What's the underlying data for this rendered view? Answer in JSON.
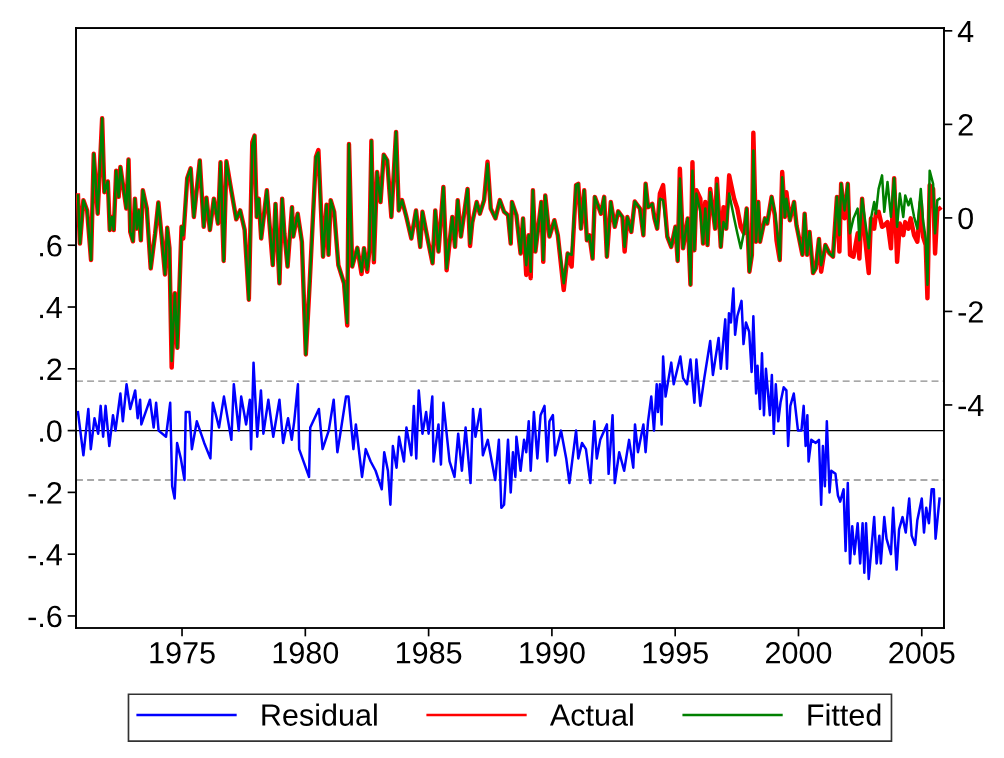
{
  "chart_data": {
    "type": "line",
    "xlim": [
      1970.7,
      2005.9
    ],
    "xticks": [
      1975,
      1980,
      1985,
      1990,
      1995,
      2000,
      2005
    ],
    "ylim": [
      -0.639,
      1.303
    ],
    "yticks": [
      {
        "value": -0.6,
        "label": "-.6"
      },
      {
        "value": -0.4,
        "label": "-.4"
      },
      {
        "value": -0.2,
        "label": "-.2"
      },
      {
        "value": 0,
        "label": ".0"
      },
      {
        "value": 0.2,
        "label": ".2"
      },
      {
        "value": 0.4,
        "label": ".4"
      },
      {
        "value": 0.6,
        "label": ".6"
      }
    ],
    "y2lim": [
      -8.77,
      4.06
    ],
    "y2ticks": [
      -4,
      -2,
      0,
      2,
      4
    ],
    "grid": false,
    "legend": "bottom",
    "line_style": "solid",
    "marker": "none",
    "ref_lines": [
      {
        "axis": "y",
        "value": 0,
        "color": "#000000",
        "line_style": "solid"
      },
      {
        "axis": "y",
        "value": 0.16,
        "color": "#8c8c8c",
        "line_style": "dashed"
      },
      {
        "axis": "y",
        "value": -0.16,
        "color": "#8c8c8c",
        "line_style": "dashed"
      }
    ],
    "series": [
      {
        "name": "Residual",
        "color": "#0000ff",
        "x": [
          1970.78,
          1971.0,
          1971.2,
          1971.3,
          1971.45,
          1971.6,
          1971.7,
          1971.8,
          1971.9,
          1972.05,
          1972.2,
          1972.3,
          1972.5,
          1972.6,
          1972.75,
          1972.9,
          1973.1,
          1973.2,
          1973.3,
          1973.35,
          1973.7,
          1973.85,
          1973.95,
          1974.05,
          1974.35,
          1974.52,
          1974.6,
          1974.7,
          1974.8,
          1974.95,
          1975.1,
          1975.15,
          1975.3,
          1975.4,
          1975.6,
          1975.9,
          1976.15,
          1976.25,
          1976.5,
          1976.7,
          1977.0,
          1977.1,
          1977.3,
          1977.4,
          1977.6,
          1977.75,
          1977.8,
          1977.9,
          1978.05,
          1978.2,
          1978.3,
          1978.5,
          1978.7,
          1978.95,
          1979.1,
          1979.3,
          1979.45,
          1979.55,
          1979.7,
          1979.75,
          1980.15,
          1980.2,
          1980.55,
          1980.7,
          1980.95,
          1981.15,
          1981.3,
          1981.4,
          1981.65,
          1981.75,
          1981.95,
          1982.05,
          1982.3,
          1982.45,
          1982.65,
          1982.85,
          1983.1,
          1983.2,
          1983.35,
          1983.45,
          1983.55,
          1983.7,
          1983.8,
          1984.0,
          1984.1,
          1984.3,
          1984.4,
          1984.5,
          1984.6,
          1984.75,
          1984.9,
          1985.0,
          1985.15,
          1985.2,
          1985.4,
          1985.5,
          1985.6,
          1985.85,
          1986.05,
          1986.2,
          1986.35,
          1986.5,
          1986.7,
          1986.8,
          1986.9,
          1987.1,
          1987.2,
          1987.4,
          1987.7,
          1987.85,
          1987.95,
          1988.06,
          1988.22,
          1988.33,
          1988.42,
          1988.52,
          1988.56,
          1988.73,
          1988.87,
          1988.96,
          1989.06,
          1989.14,
          1989.27,
          1989.41,
          1989.54,
          1989.7,
          1989.81,
          1989.9,
          1990.04,
          1990.13,
          1990.37,
          1990.58,
          1990.71,
          1990.98,
          1991.07,
          1991.22,
          1991.38,
          1991.56,
          1991.72,
          1991.82,
          1991.96,
          1992.23,
          1992.3,
          1992.46,
          1992.55,
          1992.73,
          1992.93,
          1993.13,
          1993.3,
          1993.37,
          1993.49,
          1993.71,
          1993.8,
          1993.9,
          1994.03,
          1994.14,
          1994.25,
          1994.3,
          1994.38,
          1994.45,
          1994.51,
          1994.61,
          1994.84,
          1994.94,
          1995.21,
          1995.32,
          1995.48,
          1995.62,
          1995.78,
          1995.86,
          1996.02,
          1996.18,
          1996.42,
          1996.53,
          1996.76,
          1996.85,
          1997.03,
          1997.1,
          1997.18,
          1997.26,
          1997.36,
          1997.43,
          1997.52,
          1997.69,
          1997.77,
          1997.87,
          1998.0,
          1998.1,
          1998.17,
          1998.28,
          1998.34,
          1998.44,
          1998.52,
          1998.6,
          1998.68,
          1998.84,
          1998.92,
          1999.0,
          1999.08,
          1999.18,
          1999.27,
          1999.4,
          1999.51,
          1999.58,
          1999.67,
          1999.81,
          1999.98,
          2000.12,
          2000.21,
          2000.29,
          2000.36,
          2000.41,
          2000.52,
          2000.7,
          2000.83,
          2000.92,
          2000.99,
          2001.07,
          2001.15,
          2001.26,
          2001.33,
          2001.5,
          2001.6,
          2001.69,
          2001.83,
          2001.91,
          2002.0,
          2002.09,
          2002.18,
          2002.27,
          2002.4,
          2002.5,
          2002.6,
          2002.67,
          2002.74,
          2002.85,
          2003.07,
          2003.17,
          2003.28,
          2003.34,
          2003.48,
          2003.57,
          2003.75,
          2003.84,
          2003.98,
          2004.08,
          2004.22,
          2004.35,
          2004.49,
          2004.59,
          2004.73,
          2004.82,
          2005.0,
          2005.09,
          2005.18,
          2005.29,
          2005.4,
          2005.49,
          2005.56,
          2005.72
        ],
        "values": [
          0.06,
          -0.08,
          0.07,
          -0.06,
          0.04,
          -0.01,
          0.08,
          -0.02,
          0.08,
          -0.05,
          0.05,
          0.0,
          0.12,
          0.03,
          0.15,
          0.07,
          0.13,
          0.04,
          0.1,
          0.02,
          0.1,
          0.01,
          0.09,
          0.0,
          -0.02,
          0.09,
          -0.18,
          -0.22,
          -0.04,
          -0.09,
          -0.16,
          0.06,
          0.06,
          -0.06,
          0.03,
          -0.04,
          -0.09,
          0.09,
          0.01,
          0.11,
          -0.03,
          0.15,
          0.0,
          0.11,
          0.02,
          0.1,
          -0.06,
          0.22,
          -0.02,
          0.13,
          -0.01,
          0.1,
          -0.02,
          0.1,
          -0.04,
          0.04,
          -0.03,
          0.03,
          0.15,
          -0.06,
          -0.15,
          0.01,
          0.07,
          -0.06,
          0.0,
          0.1,
          -0.07,
          -0.02,
          0.11,
          0.11,
          -0.06,
          0.02,
          -0.15,
          -0.06,
          -0.1,
          -0.13,
          -0.19,
          -0.07,
          -0.13,
          -0.24,
          -0.05,
          -0.12,
          -0.02,
          -0.1,
          0.01,
          -0.08,
          0.08,
          -0.09,
          0.13,
          -0.01,
          0.06,
          -0.01,
          0.11,
          -0.1,
          0.02,
          -0.11,
          0.09,
          -0.1,
          -0.15,
          -0.01,
          -0.13,
          0.01,
          -0.17,
          0.07,
          -0.02,
          0.07,
          -0.08,
          -0.03,
          -0.16,
          -0.03,
          -0.25,
          -0.24,
          -0.03,
          -0.2,
          -0.07,
          -0.15,
          -0.02,
          -0.13,
          -0.03,
          -0.07,
          0.03,
          -0.13,
          0.06,
          -0.09,
          0.05,
          0.08,
          -0.1,
          0.03,
          0.05,
          -0.08,
          0.0,
          -0.09,
          -0.17,
          0.0,
          -0.09,
          -0.04,
          -0.06,
          -0.17,
          0.03,
          -0.09,
          -0.03,
          0.02,
          -0.14,
          0.05,
          -0.17,
          -0.07,
          -0.13,
          -0.03,
          -0.12,
          0.02,
          -0.07,
          0.02,
          -0.07,
          0.03,
          0.11,
          0.0,
          0.15,
          0.06,
          0.15,
          0.02,
          0.24,
          0.11,
          0.22,
          0.15,
          0.24,
          0.17,
          0.15,
          0.23,
          0.09,
          0.23,
          0.08,
          0.17,
          0.29,
          0.18,
          0.3,
          0.2,
          0.36,
          0.2,
          0.38,
          0.35,
          0.46,
          0.31,
          0.37,
          0.42,
          0.28,
          0.35,
          0.32,
          0.19,
          0.37,
          0.12,
          0.21,
          0.07,
          0.25,
          0.05,
          0.2,
          0.05,
          0.18,
          -0.01,
          0.15,
          0.03,
          0.09,
          0.14,
          0.13,
          -0.05,
          0.08,
          0.12,
          0.0,
          0.0,
          0.08,
          -0.05,
          0.05,
          -0.1,
          -0.03,
          -0.04,
          -0.03,
          -0.24,
          -0.05,
          -0.18,
          0.03,
          -0.2,
          -0.13,
          -0.14,
          -0.21,
          -0.23,
          -0.19,
          -0.39,
          -0.17,
          -0.43,
          -0.31,
          -0.4,
          -0.3,
          -0.43,
          -0.3,
          -0.46,
          -0.3,
          -0.48,
          -0.28,
          -0.43,
          -0.34,
          -0.43,
          -0.28,
          -0.35,
          -0.4,
          -0.25,
          -0.45,
          -0.32,
          -0.28,
          -0.33,
          -0.22,
          -0.34,
          -0.37,
          -0.29,
          -0.22,
          -0.33,
          -0.25,
          -0.3,
          -0.19,
          -0.19,
          -0.35,
          -0.22
        ]
      },
      {
        "name": "Actual",
        "color": "#ff0000",
        "axis": "y2",
        "x": [
          1970.78,
          1970.86,
          1971.0,
          1971.15,
          1971.31,
          1971.42,
          1971.58,
          1971.76,
          1971.85,
          1971.99,
          1972.07,
          1972.16,
          1972.23,
          1972.33,
          1972.43,
          1972.5,
          1972.74,
          1972.83,
          1972.9,
          1973.01,
          1973.09,
          1973.17,
          1973.24,
          1973.33,
          1973.41,
          1973.57,
          1973.73,
          1973.91,
          1974.04,
          1974.18,
          1974.31,
          1974.4,
          1974.49,
          1974.58,
          1974.71,
          1974.81,
          1974.98,
          1975.05,
          1975.21,
          1975.35,
          1975.48,
          1975.72,
          1975.88,
          1975.99,
          1976.13,
          1976.29,
          1976.46,
          1976.56,
          1976.69,
          1976.8,
          1976.96,
          1977.2,
          1977.36,
          1977.54,
          1977.71,
          1977.85,
          1977.94,
          1978.03,
          1978.11,
          1978.21,
          1978.44,
          1978.68,
          1978.79,
          1978.95,
          1979.06,
          1979.15,
          1979.28,
          1979.46,
          1979.51,
          1979.69,
          1979.86,
          1980.02,
          1980.18,
          1980.43,
          1980.53,
          1980.72,
          1980.86,
          1980.94,
          1981.03,
          1981.17,
          1981.34,
          1981.57,
          1981.7,
          1981.77,
          1981.9,
          1982.11,
          1982.28,
          1982.38,
          1982.51,
          1982.6,
          1982.68,
          1982.78,
          1982.91,
          1983.05,
          1983.18,
          1983.32,
          1983.49,
          1983.68,
          1983.79,
          1983.92,
          1984.08,
          1984.3,
          1984.49,
          1984.66,
          1984.75,
          1984.97,
          1985.16,
          1985.27,
          1985.4,
          1985.6,
          1985.73,
          1985.96,
          1986.07,
          1986.18,
          1986.31,
          1986.58,
          1986.68,
          1986.77,
          1986.95,
          1987.08,
          1987.25,
          1987.39,
          1987.52,
          1987.71,
          1987.89,
          1988.06,
          1988.22,
          1988.33,
          1988.38,
          1988.56,
          1988.73,
          1988.83,
          1988.96,
          1989.06,
          1989.14,
          1989.23,
          1989.33,
          1989.57,
          1989.65,
          1989.73,
          1989.9,
          1990.1,
          1990.24,
          1990.48,
          1990.64,
          1990.8,
          1990.98,
          1991.07,
          1991.18,
          1991.31,
          1991.42,
          1991.52,
          1991.65,
          1991.74,
          1991.99,
          1992.12,
          1992.23,
          1992.39,
          1992.55,
          1992.69,
          1992.86,
          1992.95,
          1993.06,
          1993.22,
          1993.36,
          1993.57,
          1993.71,
          1993.8,
          1993.9,
          1994.07,
          1994.16,
          1994.27,
          1994.38,
          1994.51,
          1994.68,
          1994.84,
          1995.01,
          1995.1,
          1995.19,
          1995.32,
          1995.51,
          1995.62,
          1995.7,
          1995.78,
          1995.86,
          1996.02,
          1996.13,
          1996.22,
          1996.31,
          1996.42,
          1996.62,
          1996.69,
          1996.85,
          1996.96,
          1997.07,
          1997.19,
          1997.39,
          1997.52,
          1997.66,
          1997.79,
          1997.9,
          1998.01,
          1998.11,
          1998.17,
          1998.28,
          1998.37,
          1998.44,
          1998.64,
          1998.73,
          1998.91,
          1999.04,
          1999.11,
          1999.24,
          1999.34,
          1999.45,
          1999.51,
          1999.65,
          1999.82,
          1999.92,
          2000.16,
          2000.25,
          2000.35,
          2000.45,
          2000.59,
          2000.7,
          2000.83,
          2000.92,
          2001.09,
          2001.26,
          2001.4,
          2001.56,
          2001.66,
          2001.73,
          2001.87,
          2002.0,
          2002.09,
          2002.23,
          2002.4,
          2002.47,
          2002.58,
          2002.71,
          2002.85,
          2002.94,
          2003.07,
          2003.14,
          2003.25,
          2003.39,
          2003.48,
          2003.61,
          2003.75,
          2003.88,
          2004.0,
          2004.11,
          2004.25,
          2004.33,
          2004.46,
          2004.55,
          2004.69,
          2004.82,
          2004.96,
          2005.05,
          2005.16,
          2005.23,
          2005.32,
          2005.46,
          2005.54,
          2005.63,
          2005.72
        ],
        "values": [
          0.48,
          -0.55,
          0.38,
          0.16,
          -0.9,
          1.37,
          0.09,
          2.13,
          0.55,
          0.78,
          -0.26,
          0.02,
          -0.26,
          1.01,
          0.45,
          1.09,
          0.2,
          1.25,
          -0.3,
          -0.5,
          0.41,
          -0.23,
          0.16,
          -0.48,
          0.59,
          0.2,
          -1.08,
          -0.33,
          0.33,
          -0.44,
          -1.21,
          -0.21,
          -0.65,
          -3.2,
          -1.61,
          -2.78,
          -0.19,
          -0.44,
          0.85,
          1.06,
          0.02,
          1.23,
          -0.19,
          0.43,
          -0.26,
          0.41,
          -0.12,
          1.19,
          -0.92,
          1.21,
          0.7,
          -0.03,
          0.16,
          -0.26,
          -1.75,
          1.62,
          1.76,
          0.02,
          0.41,
          -0.44,
          0.59,
          -1.01,
          0.3,
          -1.4,
          0.41,
          -0.33,
          -1.04,
          0.23,
          -0.4,
          0.09,
          -0.51,
          -2.92,
          -1.36,
          1.3,
          1.45,
          -0.83,
          0.28,
          -0.79,
          0.38,
          0.13,
          -1.01,
          -1.4,
          -2.3,
          1.58,
          -1.04,
          -0.64,
          -1.2,
          -0.65,
          -1.15,
          -0.69,
          1.65,
          -0.95,
          0.98,
          0.34,
          1.35,
          1.23,
          0.02,
          1.84,
          0.16,
          0.38,
          0.06,
          -0.44,
          0.16,
          -0.62,
          0.13,
          -0.48,
          -0.97,
          0.16,
          -0.72,
          0.66,
          -1.12,
          0.02,
          -0.62,
          0.38,
          -0.4,
          0.62,
          -0.6,
          -0.1,
          0.34,
          0.09,
          0.38,
          1.2,
          0.2,
          -0.01,
          0.38,
          0.13,
          0.06,
          -0.55,
          0.34,
          0.06,
          -0.76,
          -0.01,
          -1.22,
          -0.37,
          -1.29,
          0.59,
          -0.72,
          0.34,
          -0.94,
          0.48,
          -0.4,
          -0.05,
          -0.37,
          -1.54,
          -0.76,
          -1.04,
          0.7,
          0.73,
          -0.23,
          0.59,
          -0.48,
          -0.37,
          -0.87,
          0.45,
          0.09,
          0.45,
          -0.83,
          0.34,
          -0.19,
          0.14,
          0.02,
          -0.72,
          0.02,
          -0.3,
          0.35,
          0.2,
          -0.37,
          0.73,
          0.23,
          0.3,
          -0.01,
          -0.23,
          0.52,
          0.7,
          -0.4,
          -0.62,
          -0.19,
          -0.92,
          1.05,
          -0.65,
          -0.01,
          -1.43,
          1.19,
          -0.69,
          0.59,
          0.41,
          -0.55,
          0.34,
          -0.58,
          0.62,
          -0.23,
          0.84,
          -0.62,
          0.23,
          -0.23,
          0.91,
          0.41,
          0.2,
          -0.19,
          -0.33,
          0.2,
          -1.15,
          -0.79,
          1.82,
          -0.51,
          0.34,
          -0.51,
          -0.01,
          -0.12,
          0.45,
          0.06,
          -0.48,
          -0.9,
          0.98,
          0.02,
          0.55,
          -0.05,
          0.34,
          -0.16,
          -0.79,
          0.09,
          -0.79,
          -0.3,
          -1.18,
          -1.08,
          -0.45,
          -1.15,
          -0.58,
          -0.76,
          -0.83,
          0.45,
          -0.72,
          0.73,
          -0.01,
          0.73,
          -0.79,
          -0.83,
          -0.33,
          -0.87,
          0.41,
          -0.48,
          -1.18,
          -0.01,
          -0.23,
          0.09,
          0.13,
          -0.19,
          -0.16,
          -0.09,
          -0.65,
          0.85,
          -0.94,
          -0.12,
          -0.37,
          -0.09,
          -0.23,
          -0.01,
          -0.37,
          -0.51,
          0.34,
          -0.4,
          -0.58,
          -1.72,
          0.7,
          0.62,
          -0.76,
          0.16,
          0.2
        ]
      },
      {
        "name": "Fitted",
        "color": "#008000",
        "axis": "y2",
        "x": [
          1970.78,
          1970.86,
          1971.0,
          1971.15,
          1971.31,
          1971.42,
          1971.58,
          1971.76,
          1971.85,
          1971.99,
          1972.07,
          1972.16,
          1972.23,
          1972.33,
          1972.43,
          1972.5,
          1972.74,
          1972.83,
          1972.9,
          1973.01,
          1973.09,
          1973.17,
          1973.24,
          1973.33,
          1973.41,
          1973.57,
          1973.73,
          1973.91,
          1974.04,
          1974.18,
          1974.31,
          1974.4,
          1974.49,
          1974.58,
          1974.71,
          1974.81,
          1974.98,
          1975.05,
          1975.21,
          1975.35,
          1975.48,
          1975.72,
          1975.88,
          1975.99,
          1976.13,
          1976.29,
          1976.46,
          1976.56,
          1976.69,
          1976.8,
          1976.96,
          1977.2,
          1977.36,
          1977.54,
          1977.71,
          1977.85,
          1977.94,
          1978.03,
          1978.11,
          1978.21,
          1978.44,
          1978.68,
          1978.79,
          1978.95,
          1979.06,
          1979.15,
          1979.28,
          1979.46,
          1979.51,
          1979.69,
          1979.86,
          1980.02,
          1980.18,
          1980.43,
          1980.53,
          1980.72,
          1980.86,
          1980.94,
          1981.03,
          1981.17,
          1981.34,
          1981.57,
          1981.7,
          1981.77,
          1981.9,
          1982.11,
          1982.28,
          1982.38,
          1982.51,
          1982.6,
          1982.68,
          1982.78,
          1982.91,
          1983.05,
          1983.18,
          1983.32,
          1983.49,
          1983.68,
          1983.79,
          1983.92,
          1984.08,
          1984.3,
          1984.49,
          1984.66,
          1984.75,
          1984.97,
          1985.16,
          1985.27,
          1985.4,
          1985.6,
          1985.73,
          1985.96,
          1986.07,
          1986.18,
          1986.31,
          1986.58,
          1986.68,
          1986.77,
          1986.95,
          1987.08,
          1987.25,
          1987.39,
          1987.52,
          1987.71,
          1987.89,
          1988.06,
          1988.22,
          1988.33,
          1988.38,
          1988.56,
          1988.73,
          1988.83,
          1988.96,
          1989.06,
          1989.14,
          1989.23,
          1989.33,
          1989.57,
          1989.65,
          1989.73,
          1989.9,
          1990.1,
          1990.24,
          1990.48,
          1990.64,
          1990.8,
          1990.98,
          1991.07,
          1991.18,
          1991.31,
          1991.42,
          1991.52,
          1991.65,
          1991.74,
          1991.99,
          1992.12,
          1992.23,
          1992.39,
          1992.55,
          1992.69,
          1992.86,
          1992.95,
          1993.06,
          1993.22,
          1993.36,
          1993.57,
          1993.71,
          1993.8,
          1993.9,
          1994.07,
          1994.16,
          1994.27,
          1994.38,
          1994.51,
          1994.68,
          1994.84,
          1995.01,
          1995.1,
          1995.19,
          1995.32,
          1995.51,
          1995.62,
          1995.7,
          1995.78,
          1995.86,
          1996.02,
          1996.13,
          1996.22,
          1996.31,
          1996.42,
          1996.62,
          1996.69,
          1996.85,
          1996.96,
          1997.07,
          1997.19,
          1997.39,
          1997.52,
          1997.66,
          1997.79,
          1997.9,
          1998.01,
          1998.11,
          1998.17,
          1998.28,
          1998.37,
          1998.44,
          1998.64,
          1998.73,
          1998.91,
          1999.04,
          1999.11,
          1999.24,
          1999.34,
          1999.45,
          1999.51,
          1999.65,
          1999.82,
          1999.92,
          2000.16,
          2000.25,
          2000.35,
          2000.45,
          2000.59,
          2000.7,
          2000.83,
          2000.92,
          2001.09,
          2001.26,
          2001.4,
          2001.56,
          2001.66,
          2001.73,
          2001.87,
          2002.0,
          2002.09,
          2002.23,
          2002.4,
          2002.47,
          2002.58,
          2002.71,
          2002.85,
          2002.94,
          2003.07,
          2003.14,
          2003.25,
          2003.39,
          2003.48,
          2003.61,
          2003.75,
          2003.88,
          2004.0,
          2004.11,
          2004.25,
          2004.33,
          2004.46,
          2004.55,
          2004.69,
          2004.82,
          2004.96,
          2005.05,
          2005.16,
          2005.23,
          2005.32,
          2005.46,
          2005.54,
          2005.63,
          2005.72
        ],
        "values": [
          0.48,
          -0.55,
          0.38,
          0.16,
          -0.9,
          1.37,
          0.09,
          2.13,
          0.55,
          0.78,
          -0.26,
          0.02,
          -0.26,
          1.01,
          0.45,
          1.09,
          0.2,
          1.25,
          -0.3,
          -0.5,
          0.41,
          -0.23,
          0.16,
          -0.48,
          0.59,
          0.2,
          -1.08,
          -0.33,
          0.33,
          -0.44,
          -1.21,
          -0.21,
          -0.65,
          -3.06,
          -1.61,
          -2.78,
          -0.19,
          -0.37,
          0.85,
          1.06,
          0.02,
          1.23,
          -0.19,
          0.43,
          -0.26,
          0.41,
          -0.12,
          1.19,
          -0.92,
          1.21,
          0.7,
          -0.03,
          0.16,
          -0.26,
          -1.75,
          1.55,
          1.76,
          0.02,
          0.41,
          -0.44,
          0.59,
          -1.01,
          0.3,
          -1.4,
          0.41,
          -0.33,
          -1.04,
          0.23,
          -0.4,
          0.09,
          -0.51,
          -2.92,
          -1.36,
          1.3,
          1.4,
          -0.83,
          0.28,
          -0.79,
          0.38,
          0.13,
          -1.01,
          -1.4,
          -2.25,
          1.58,
          -1.04,
          -0.64,
          -1.15,
          -0.65,
          -1.11,
          -0.69,
          1.65,
          -0.9,
          0.98,
          0.34,
          1.35,
          1.23,
          0.02,
          1.84,
          0.16,
          0.38,
          0.06,
          -0.44,
          0.16,
          -0.62,
          0.13,
          -0.48,
          -0.97,
          0.16,
          -0.72,
          0.66,
          -1.08,
          0.02,
          -0.62,
          0.38,
          -0.4,
          0.62,
          -0.55,
          -0.1,
          0.34,
          0.09,
          0.38,
          1.16,
          0.2,
          -0.01,
          0.38,
          0.13,
          0.06,
          -0.55,
          0.34,
          0.06,
          -0.76,
          -0.01,
          -1.01,
          -0.37,
          -1.15,
          0.59,
          -0.72,
          0.34,
          -0.9,
          0.48,
          -0.4,
          -0.05,
          -0.37,
          -1.4,
          -0.76,
          -0.79,
          0.7,
          0.73,
          -0.23,
          0.59,
          -0.48,
          -0.37,
          -0.87,
          0.45,
          0.09,
          0.45,
          -0.83,
          0.34,
          -0.19,
          0.14,
          0.02,
          -0.62,
          0.02,
          -0.3,
          0.35,
          0.2,
          -0.37,
          0.73,
          0.23,
          0.3,
          -0.01,
          -0.23,
          0.41,
          0.38,
          -0.4,
          -0.62,
          -0.19,
          -0.92,
          0.84,
          -0.65,
          -0.01,
          -1.43,
          1.01,
          -0.69,
          0.52,
          0.13,
          -0.55,
          0.2,
          -0.58,
          0.55,
          -0.23,
          0.73,
          -0.62,
          -0.09,
          -0.23,
          0.52,
          -0.01,
          -0.33,
          -0.65,
          -0.3,
          0.2,
          -1.15,
          -0.79,
          1.44,
          -0.51,
          0.34,
          -0.51,
          -0.01,
          -0.12,
          0.45,
          0.13,
          -0.16,
          -0.9,
          0.87,
          0.02,
          0.41,
          -0.05,
          0.34,
          -0.16,
          -0.79,
          0.09,
          -0.79,
          -0.3,
          -1.18,
          -1.08,
          -0.45,
          -1.01,
          -0.58,
          -0.76,
          -0.83,
          0.45,
          -0.37,
          0.73,
          0.16,
          0.73,
          -0.33,
          -0.01,
          0.2,
          -0.48,
          0.41,
          -0.09,
          -0.65,
          -0.01,
          0.34,
          0.09,
          0.62,
          0.91,
          0.13,
          0.77,
          0.02,
          0.85,
          -0.19,
          0.52,
          0.02,
          0.48,
          0.27,
          0.41,
          0.02,
          -0.23,
          0.62,
          -0.05,
          -0.44,
          -1.43,
          1.01,
          0.73,
          -0.33,
          0.38,
          0.41
        ]
      }
    ]
  }
}
